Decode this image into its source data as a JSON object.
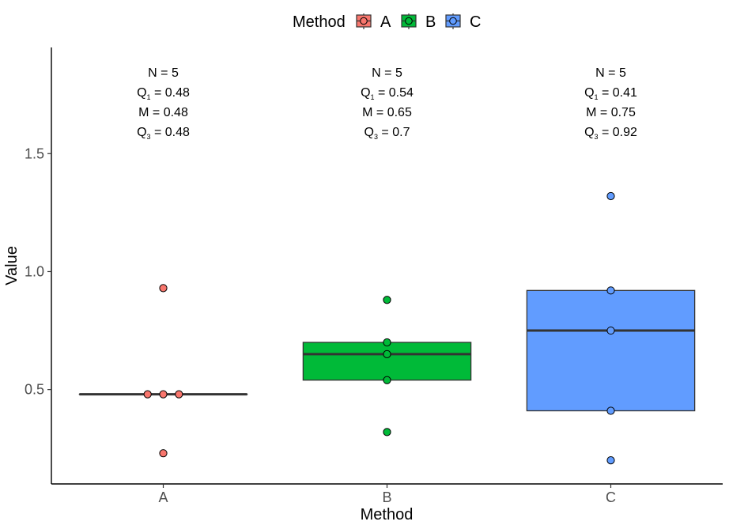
{
  "chart_data": {
    "type": "box",
    "xlabel": "Method",
    "ylabel": "Value",
    "categories": [
      "A",
      "B",
      "C"
    ],
    "ylim": [
      0.1,
      1.95
    ],
    "yticks": [
      0.5,
      1.0,
      1.5
    ],
    "ytick_labels": [
      "0.5",
      "1.0",
      "1.5"
    ],
    "legend": {
      "title": "Method",
      "position": "top",
      "items": [
        "A",
        "B",
        "C"
      ]
    },
    "grid": false,
    "series": [
      {
        "name": "A",
        "color": "#F8766D",
        "box": {
          "q1": 0.48,
          "median": 0.48,
          "q3": 0.48
        },
        "points": [
          0.93,
          0.48,
          0.48,
          0.48,
          0.23
        ],
        "jitter": [
          0,
          -0.07,
          0,
          0.07,
          0
        ],
        "annotation": {
          "n": "N = 5",
          "q1_label": "Q",
          "q1_value": " = 0.48",
          "m": "M = 0.48",
          "q3_label": "Q",
          "q3_value": " = 0.48"
        }
      },
      {
        "name": "B",
        "color": "#00BA38",
        "box": {
          "q1": 0.54,
          "median": 0.65,
          "q3": 0.7
        },
        "points": [
          0.88,
          0.7,
          0.65,
          0.54,
          0.32
        ],
        "jitter": [
          0,
          0,
          0,
          0,
          0
        ],
        "annotation": {
          "n": "N = 5",
          "q1_label": "Q",
          "q1_value": " = 0.54",
          "m": "M = 0.65",
          "q3_label": "Q",
          "q3_value": " = 0.7"
        }
      },
      {
        "name": "C",
        "color": "#619CFF",
        "box": {
          "q1": 0.41,
          "median": 0.75,
          "q3": 0.92
        },
        "points": [
          1.32,
          0.92,
          0.75,
          0.41,
          0.2
        ],
        "jitter": [
          0,
          0,
          0,
          0,
          0
        ],
        "annotation": {
          "n": "N = 5",
          "q1_label": "Q",
          "q1_value": " = 0.41",
          "m": "M = 0.75",
          "q3_label": "Q",
          "q3_value": " = 0.92"
        }
      }
    ],
    "subscripts": {
      "q1": "1",
      "q3": "3"
    }
  }
}
